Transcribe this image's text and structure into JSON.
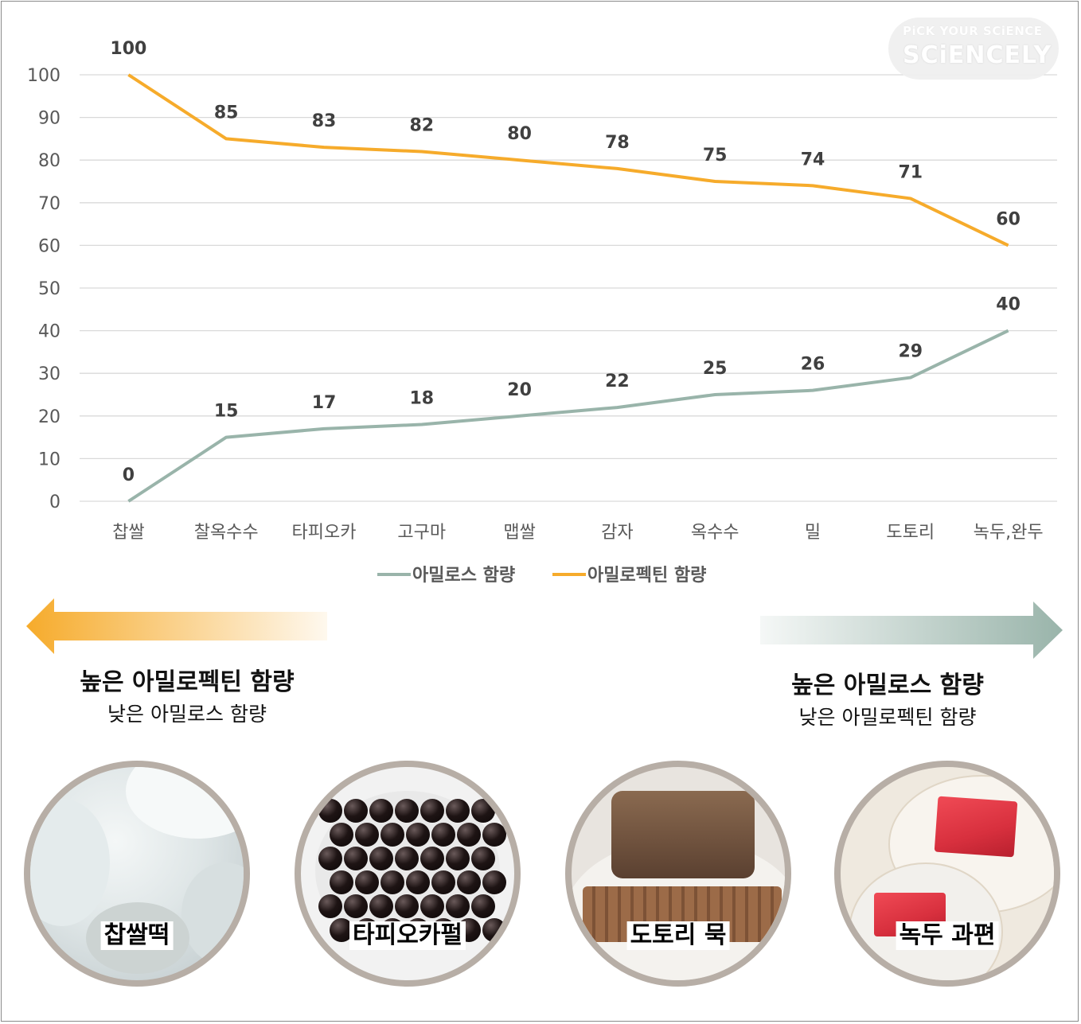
{
  "chart_data": {
    "type": "line",
    "categories": [
      "찹쌀",
      "찰옥수수",
      "타피오카",
      "고구마",
      "맵쌀",
      "감자",
      "옥수수",
      "밀",
      "도토리",
      "녹두,완두"
    ],
    "series": [
      {
        "name": "아밀로스 함량",
        "color": "#99b4aa",
        "values": [
          0,
          15,
          17,
          18,
          20,
          22,
          25,
          26,
          29,
          40
        ]
      },
      {
        "name": "아밀로펙틴 함량",
        "color": "#f6ab2b",
        "values": [
          100,
          85,
          83,
          82,
          80,
          78,
          75,
          74,
          71,
          60
        ]
      }
    ],
    "yticks": [
      "0",
      "10",
      "20",
      "30",
      "40",
      "50",
      "60",
      "70",
      "80",
      "90",
      "100"
    ],
    "ylim": [
      0,
      100
    ],
    "grid": true,
    "legend_position": "bottom"
  },
  "logo": {
    "line1": "PiCK YOUR SCiENCE",
    "line2": "SCiENCELY"
  },
  "left_caption": {
    "main": "높은 아밀로펙틴 함량",
    "sub": "낮은 아밀로스 함량",
    "color": "#f6ab2b"
  },
  "right_caption": {
    "main": "높은 아밀로스 함량",
    "sub": "낮은 아밀로펙틴 함량",
    "color": "#99b4aa"
  },
  "photos": [
    {
      "label": "찹쌀떡",
      "icon": "rice-cake-photo"
    },
    {
      "label": "타피오카펄",
      "icon": "tapioca-pearl-photo"
    },
    {
      "label": "도토리 묵",
      "icon": "acorn-jelly-photo"
    },
    {
      "label": "녹두 과편",
      "icon": "mung-bean-jelly-photo"
    }
  ]
}
